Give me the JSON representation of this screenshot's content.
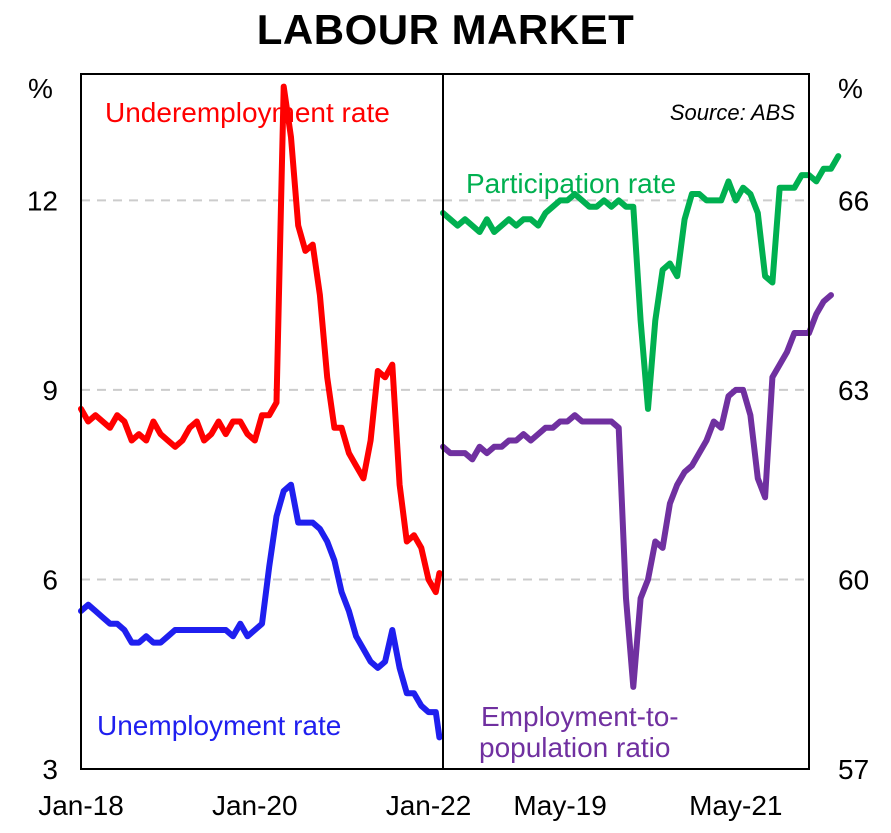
{
  "chart_data": {
    "type": "line",
    "title": "LABOUR MARKET",
    "source": "Source: ABS",
    "panels": [
      {
        "name": "left",
        "y_unit": "%",
        "ylim": [
          3,
          14
        ],
        "y_ticks": [
          "12",
          "9",
          "6",
          "3"
        ],
        "y_tick_values": [
          12,
          9,
          6,
          3
        ],
        "x_ticks": [
          "Jan-18",
          "Jan-20",
          "Jan-22"
        ],
        "x_tick_months": [
          0,
          24,
          48
        ],
        "x_range_months": [
          0,
          50
        ],
        "series": [
          {
            "name": "Underemployment rate",
            "color": "#ff0000",
            "values": [
              [
                0,
                8.7
              ],
              [
                1,
                8.5
              ],
              [
                2,
                8.6
              ],
              [
                3,
                8.5
              ],
              [
                4,
                8.4
              ],
              [
                5,
                8.6
              ],
              [
                6,
                8.5
              ],
              [
                7,
                8.2
              ],
              [
                8,
                8.3
              ],
              [
                9,
                8.2
              ],
              [
                10,
                8.5
              ],
              [
                11,
                8.3
              ],
              [
                12,
                8.2
              ],
              [
                13,
                8.1
              ],
              [
                14,
                8.2
              ],
              [
                15,
                8.4
              ],
              [
                16,
                8.5
              ],
              [
                17,
                8.2
              ],
              [
                18,
                8.3
              ],
              [
                19,
                8.5
              ],
              [
                20,
                8.3
              ],
              [
                21,
                8.5
              ],
              [
                22,
                8.5
              ],
              [
                23,
                8.3
              ],
              [
                24,
                8.2
              ],
              [
                25,
                8.6
              ],
              [
                26,
                8.6
              ],
              [
                27,
                8.8
              ],
              [
                28,
                13.8
              ],
              [
                29,
                13.0
              ],
              [
                30,
                11.6
              ],
              [
                31,
                11.2
              ],
              [
                32,
                11.3
              ],
              [
                33,
                10.5
              ],
              [
                34,
                9.2
              ],
              [
                35,
                8.4
              ],
              [
                36,
                8.4
              ],
              [
                37,
                8.0
              ],
              [
                38,
                7.8
              ],
              [
                39,
                7.6
              ],
              [
                40,
                8.2
              ],
              [
                41,
                9.3
              ],
              [
                42,
                9.2
              ],
              [
                43,
                9.4
              ],
              [
                44,
                7.5
              ],
              [
                45,
                6.6
              ],
              [
                46,
                6.7
              ],
              [
                47,
                6.5
              ],
              [
                48,
                6.0
              ],
              [
                49,
                5.8
              ],
              [
                49.5,
                6.1
              ]
            ]
          },
          {
            "name": "Unemployment rate",
            "color": "#1f1fef",
            "values": [
              [
                0,
                5.5
              ],
              [
                1,
                5.6
              ],
              [
                2,
                5.5
              ],
              [
                3,
                5.4
              ],
              [
                4,
                5.3
              ],
              [
                5,
                5.3
              ],
              [
                6,
                5.2
              ],
              [
                7,
                5.0
              ],
              [
                8,
                5.0
              ],
              [
                9,
                5.1
              ],
              [
                10,
                5.0
              ],
              [
                11,
                5.0
              ],
              [
                12,
                5.1
              ],
              [
                13,
                5.2
              ],
              [
                14,
                5.2
              ],
              [
                15,
                5.2
              ],
              [
                16,
                5.2
              ],
              [
                17,
                5.2
              ],
              [
                18,
                5.2
              ],
              [
                19,
                5.2
              ],
              [
                20,
                5.2
              ],
              [
                21,
                5.1
              ],
              [
                22,
                5.3
              ],
              [
                23,
                5.1
              ],
              [
                24,
                5.2
              ],
              [
                25,
                5.3
              ],
              [
                26,
                6.2
              ],
              [
                27,
                7.0
              ],
              [
                28,
                7.4
              ],
              [
                29,
                7.5
              ],
              [
                30,
                6.9
              ],
              [
                31,
                6.9
              ],
              [
                32,
                6.9
              ],
              [
                33,
                6.8
              ],
              [
                34,
                6.6
              ],
              [
                35,
                6.3
              ],
              [
                36,
                5.8
              ],
              [
                37,
                5.5
              ],
              [
                38,
                5.1
              ],
              [
                39,
                4.9
              ],
              [
                40,
                4.7
              ],
              [
                41,
                4.6
              ],
              [
                42,
                4.7
              ],
              [
                43,
                5.2
              ],
              [
                44,
                4.6
              ],
              [
                45,
                4.2
              ],
              [
                46,
                4.2
              ],
              [
                47,
                4.0
              ],
              [
                48,
                3.9
              ],
              [
                49,
                3.9
              ],
              [
                49.5,
                3.5
              ]
            ]
          }
        ]
      },
      {
        "name": "right",
        "y_unit": "%",
        "ylim": [
          57,
          68
        ],
        "y_ticks": [
          "66",
          "63",
          "60",
          "57"
        ],
        "y_tick_values": [
          66,
          63,
          60,
          57
        ],
        "x_ticks": [
          "May-19",
          "May-21"
        ],
        "x_tick_months": [
          16,
          40
        ],
        "x_range_months": [
          0,
          50
        ],
        "series": [
          {
            "name": "Participation rate",
            "color": "#00b050",
            "values": [
              [
                0,
                65.8
              ],
              [
                1,
                65.7
              ],
              [
                2,
                65.6
              ],
              [
                3,
                65.7
              ],
              [
                4,
                65.6
              ],
              [
                5,
                65.5
              ],
              [
                6,
                65.7
              ],
              [
                7,
                65.5
              ],
              [
                8,
                65.6
              ],
              [
                9,
                65.7
              ],
              [
                10,
                65.6
              ],
              [
                11,
                65.7
              ],
              [
                12,
                65.7
              ],
              [
                13,
                65.6
              ],
              [
                14,
                65.8
              ],
              [
                15,
                65.9
              ],
              [
                16,
                66.0
              ],
              [
                17,
                66.0
              ],
              [
                18,
                66.1
              ],
              [
                19,
                66.0
              ],
              [
                20,
                65.9
              ],
              [
                21,
                65.9
              ],
              [
                22,
                66.0
              ],
              [
                23,
                65.9
              ],
              [
                24,
                66.0
              ],
              [
                25,
                65.9
              ],
              [
                26,
                65.9
              ],
              [
                27,
                64.1
              ],
              [
                28,
                62.7
              ],
              [
                29,
                64.1
              ],
              [
                30,
                64.9
              ],
              [
                31,
                65.0
              ],
              [
                32,
                64.8
              ],
              [
                33,
                65.7
              ],
              [
                34,
                66.1
              ],
              [
                35,
                66.1
              ],
              [
                36,
                66.0
              ],
              [
                37,
                66.0
              ],
              [
                38,
                66.0
              ],
              [
                39,
                66.3
              ],
              [
                40,
                66.0
              ],
              [
                41,
                66.2
              ],
              [
                42,
                66.1
              ],
              [
                43,
                65.8
              ],
              [
                44,
                64.8
              ],
              [
                45,
                64.7
              ],
              [
                46,
                66.2
              ],
              [
                47,
                66.2
              ],
              [
                48,
                66.2
              ],
              [
                49,
                66.4
              ],
              [
                50,
                66.4
              ],
              [
                51,
                66.3
              ],
              [
                52,
                66.5
              ],
              [
                53,
                66.5
              ],
              [
                54,
                66.7
              ]
            ]
          },
          {
            "name": "Employment-to-population ratio",
            "color": "#7030a0",
            "values": [
              [
                0,
                62.1
              ],
              [
                1,
                62.0
              ],
              [
                2,
                62.0
              ],
              [
                3,
                62.0
              ],
              [
                4,
                61.9
              ],
              [
                5,
                62.1
              ],
              [
                6,
                62.0
              ],
              [
                7,
                62.1
              ],
              [
                8,
                62.1
              ],
              [
                9,
                62.2
              ],
              [
                10,
                62.2
              ],
              [
                11,
                62.3
              ],
              [
                12,
                62.2
              ],
              [
                13,
                62.3
              ],
              [
                14,
                62.4
              ],
              [
                15,
                62.4
              ],
              [
                16,
                62.5
              ],
              [
                17,
                62.5
              ],
              [
                18,
                62.6
              ],
              [
                19,
                62.5
              ],
              [
                20,
                62.5
              ],
              [
                21,
                62.5
              ],
              [
                22,
                62.5
              ],
              [
                23,
                62.5
              ],
              [
                24,
                62.4
              ],
              [
                25,
                59.7
              ],
              [
                26,
                58.3
              ],
              [
                27,
                59.7
              ],
              [
                28,
                60.0
              ],
              [
                29,
                60.6
              ],
              [
                30,
                60.5
              ],
              [
                31,
                61.2
              ],
              [
                32,
                61.5
              ],
              [
                33,
                61.7
              ],
              [
                34,
                61.8
              ],
              [
                35,
                62.0
              ],
              [
                36,
                62.2
              ],
              [
                37,
                62.5
              ],
              [
                38,
                62.4
              ],
              [
                39,
                62.9
              ],
              [
                40,
                63.0
              ],
              [
                41,
                63.0
              ],
              [
                42,
                62.6
              ],
              [
                43,
                61.6
              ],
              [
                44,
                61.3
              ],
              [
                45,
                63.2
              ],
              [
                46,
                63.4
              ],
              [
                47,
                63.6
              ],
              [
                48,
                63.9
              ],
              [
                49,
                63.9
              ],
              [
                50,
                63.9
              ],
              [
                51,
                64.2
              ],
              [
                52,
                64.4
              ],
              [
                53,
                64.5
              ]
            ]
          }
        ]
      }
    ]
  }
}
